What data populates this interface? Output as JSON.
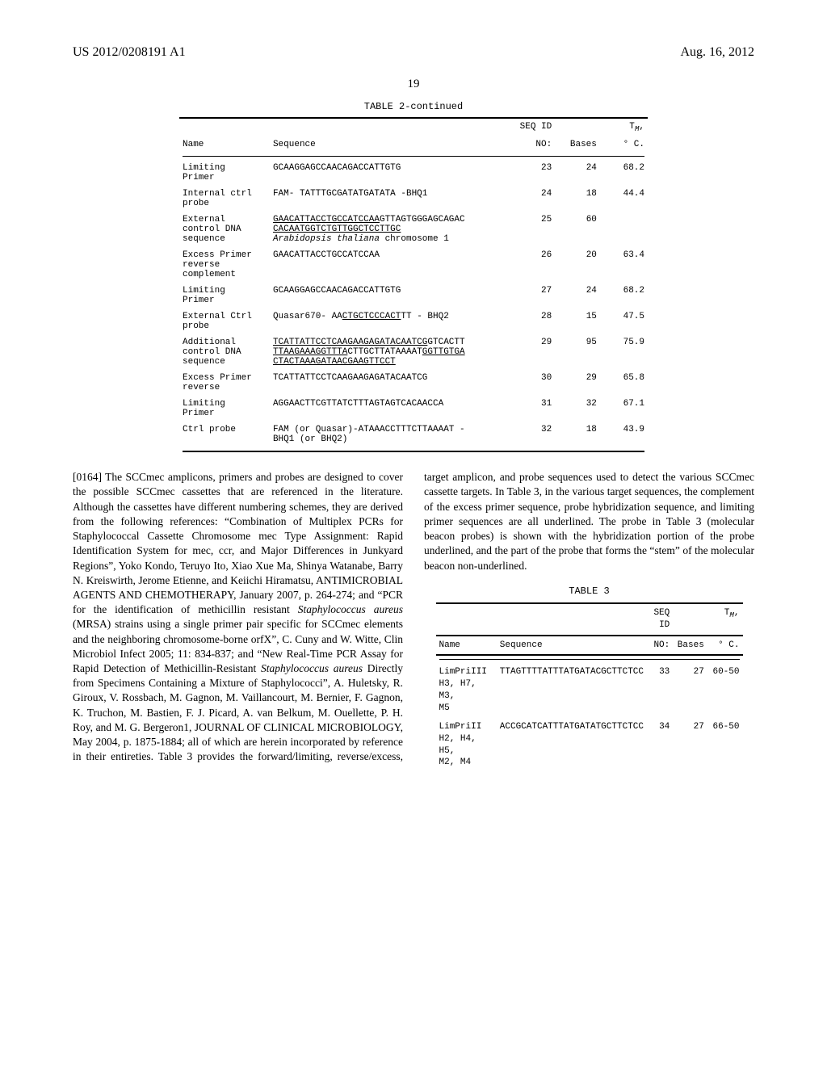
{
  "header": {
    "left": "US 2012/0208191 A1",
    "right": "Aug. 16, 2012",
    "pagenum": "19"
  },
  "table2": {
    "caption": "TABLE 2-continued",
    "cols": [
      "Name",
      "Sequence",
      "SEQ ID\nNO:",
      "Bases",
      "T_M,\n° C."
    ],
    "rows": [
      {
        "name": "Limiting\nPrimer",
        "seq": "GCAAGGAGCCAACAGACCATTGTG",
        "seqid": "23",
        "bases": "24",
        "tm": "68.2"
      },
      {
        "name": "Internal ctrl\nprobe",
        "seq": "FAM- TATTTGCGATATGATATA -BHQ1",
        "seqid": "24",
        "bases": "18",
        "tm": "44.4"
      },
      {
        "name": "External\ncontrol DNA\nsequence",
        "seq_parts": [
          {
            "t": "GAACATTACCTGCCATCCAA",
            "u": true
          },
          {
            "t": "GTTAGTGGGAGCAGAC\n",
            "u": false
          },
          {
            "t": "CACAATGGTCTGTTGGCTCCTTGC",
            "u": true
          },
          {
            "t": "\n",
            "u": false
          },
          {
            "t": "Arabidopsis thaliana",
            "i": true
          },
          {
            "t": " chromosome 1",
            "u": false
          }
        ],
        "seqid": "25",
        "bases": "60",
        "tm": ""
      },
      {
        "name": "Excess Primer\nreverse\ncomplement",
        "seq": "GAACATTACCTGCCATCCAA",
        "seqid": "26",
        "bases": "20",
        "tm": "63.4"
      },
      {
        "name": "Limiting\nPrimer",
        "seq": "GCAAGGAGCCAACAGACCATTGTG",
        "seqid": "27",
        "bases": "24",
        "tm": "68.2"
      },
      {
        "name": "External Ctrl\nprobe",
        "seq_parts": [
          {
            "t": "Quasar670- AA",
            "u": false
          },
          {
            "t": "CTGCTCCCACT",
            "u": true
          },
          {
            "t": "TT - BHQ2",
            "u": false
          }
        ],
        "seqid": "28",
        "bases": "15",
        "tm": "47.5"
      },
      {
        "name": "Additional\ncontrol DNA\nsequence",
        "seq_parts": [
          {
            "t": "TCATTATTCCTCAAGAAGAGATACAATCG",
            "u": true
          },
          {
            "t": "GTCACTT\n",
            "u": false
          },
          {
            "t": "TTAAGAAAGGTTTA",
            "u": true
          },
          {
            "t": "CTTGCTTATAAAAT",
            "u": false
          },
          {
            "t": "GGTTGTGA\nCTACTAAAGATAACGAAGTTCCT",
            "u": true
          }
        ],
        "seqid": "29",
        "bases": "95",
        "tm": "75.9"
      },
      {
        "name": "Excess Primer\nreverse",
        "seq": "TCATTATTCCTCAAGAAGAGATACAATCG",
        "seqid": "30",
        "bases": "29",
        "tm": "65.8"
      },
      {
        "name": "Limiting\nPrimer",
        "seq": "AGGAACTTCGTTATCTTTAGTAGTCACAACCA",
        "seqid": "31",
        "bases": "32",
        "tm": "67.1"
      },
      {
        "name": "Ctrl probe",
        "seq": "FAM (or Quasar)-ATAAACCTTTCTTAAAAT -\nBHQ1 (or BHQ2)",
        "seqid": "32",
        "bases": "18",
        "tm": "43.9"
      }
    ]
  },
  "body": {
    "para164": "[0164]  The SCCmec amplicons, primers and probes are designed to cover the possible SCCmec cassettes that are referenced in the literature. Although the cassettes have different numbering schemes, they are derived from the following references: “Combination of Multiplex PCRs for Staphylococcal Cassette Chromosome mec Type Assignment: Rapid Identification System for mec, ccr, and Major Differences in Junkyard Regions”, Yoko Kondo, Teruyo Ito, Xiao Xue Ma, Shinya Watanabe, Barry N. Kreiswirth, Jerome Etienne, and Keiichi Hiramatsu, ANTIMICROBIAL AGENTS AND CHEMOTHERAPY, January 2007, p. 264-274; and “PCR for the identification of methicillin resistant ",
    "para164_ital1": "Staphylococcus aureus",
    "para164_cont1": " (MRSA) strains using a single primer pair specific for SCCmec elements and the neighboring chromosome-borne orfX”, C. Cuny and W. Witte, Clin Microbiol Infect 2005; 11: 834-837; and “New Real-Time PCR Assay for Rapid Detec",
    "para164_col2a": "tion of Methicillin-Resistant ",
    "para164_ital2": "Staphylococcus aureus",
    "para164_col2b": " Directly from Specimens Containing a Mixture of Staphylococci”, A. Huletsky, R. Giroux, V. Rossbach, M. Gagnon, M. Vaillancourt, M. Bernier, F. Gagnon, K. Truchon, M. Bastien, F. J. Picard, A. van Belkum, M. Ouellette, P. H. Roy, and M. G. Bergeron1, JOURNAL OF CLINICAL MICROBIOLOGY, May 2004, p. 1875-1884; all of which are herein incorporated by reference in their entireties. Table 3 provides the forward/limiting, reverse/excess, target amplicon, and probe sequences used to detect the various SCCmec cassette targets. In Table 3, in the various target sequences, the complement of the excess primer sequence, probe hybridization sequence, and limiting primer sequences are all underlined. The probe in Table 3 (molecular beacon probes) is shown with the hybridization portion of the probe underlined, and the part of the probe that forms the “stem” of the molecular beacon non-underlined."
  },
  "table3": {
    "caption": "TABLE 3",
    "cols": [
      "Name",
      "Sequence",
      "SEQ ID\nNO:",
      "Bases",
      "T_M,\n° C."
    ],
    "rows": [
      {
        "name": "LimPriIII\nH3, H7, M3,\nM5",
        "seq": "TTAGTTTTATTTATGATACGCTTCTCC",
        "seqid": "33",
        "bases": "27",
        "tm": "60-50"
      },
      {
        "name": "LimPriII\nH2, H4, H5,\nM2, M4",
        "seq": "ACCGCATCATTTATGATATGCTTCTCC",
        "seqid": "34",
        "bases": "27",
        "tm": "66-50"
      }
    ]
  }
}
